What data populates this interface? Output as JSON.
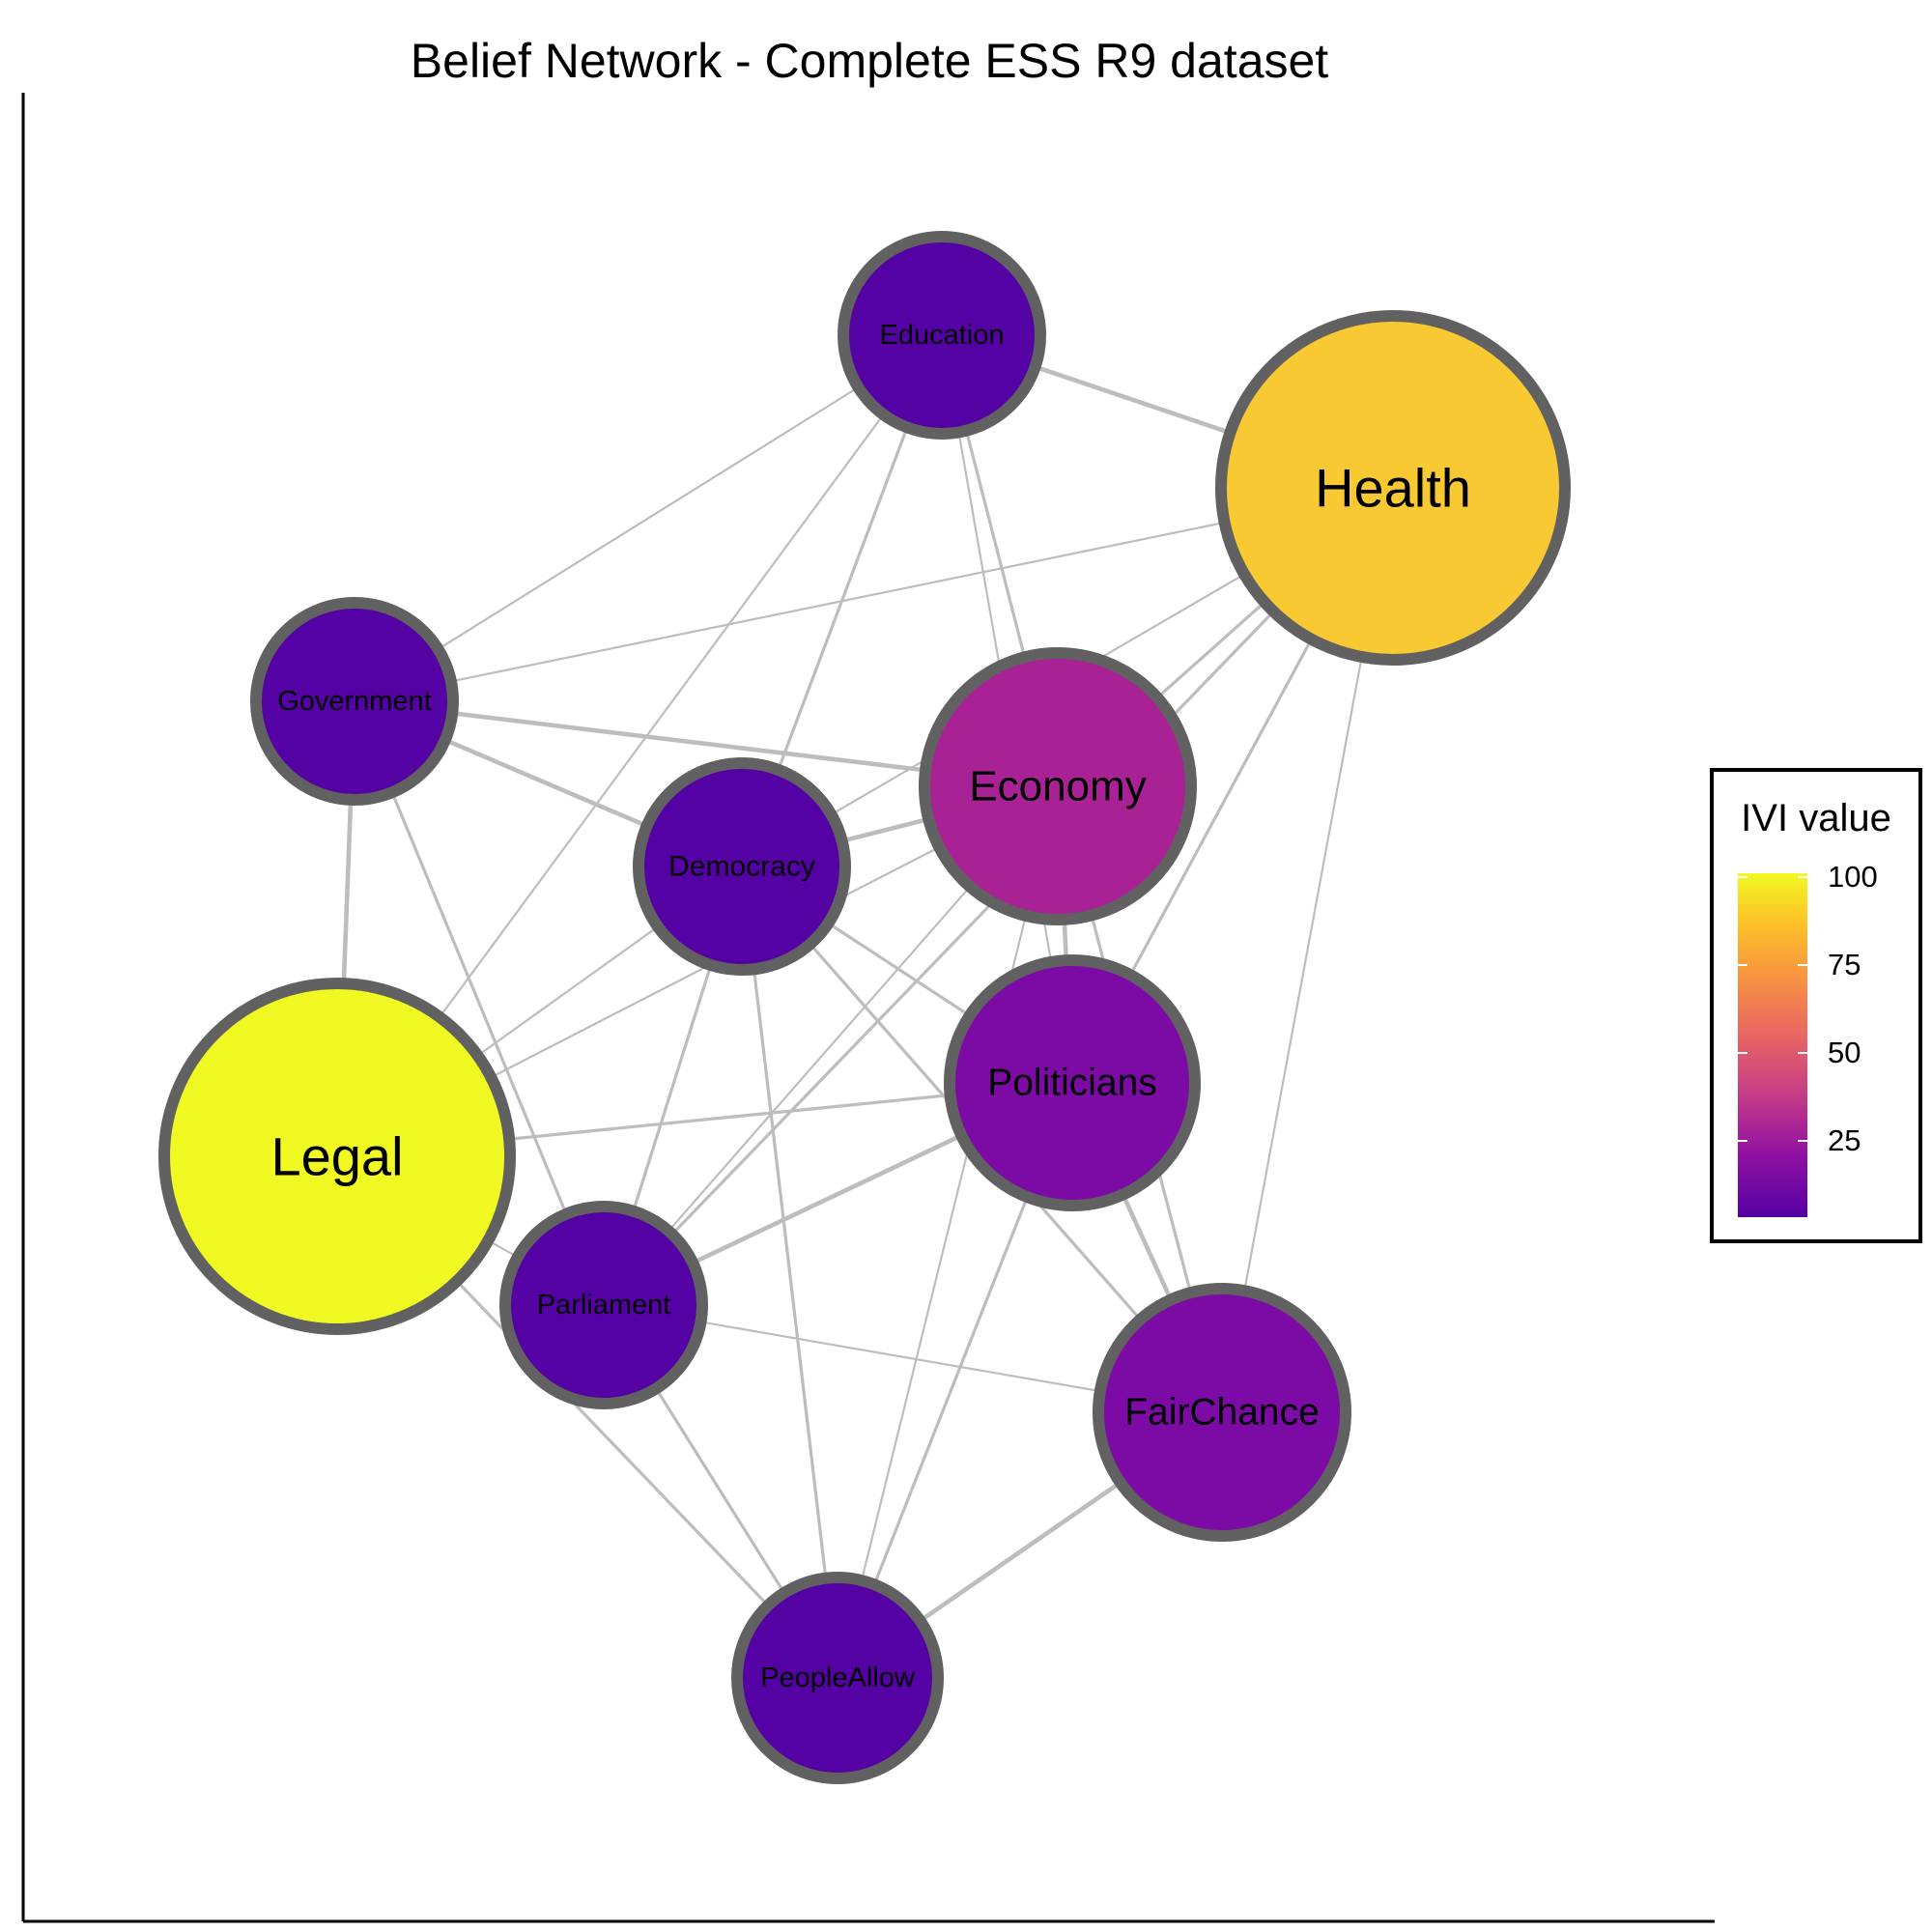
{
  "title": "Belief Network - Complete ESS R9 dataset",
  "legend": {
    "title": "IVI value",
    "ticks": [
      "100",
      "75",
      "50",
      "25"
    ],
    "colors": {
      "low": "#5402a3",
      "mid": "#cc4778",
      "high": "#f0f921"
    }
  },
  "nodes": [
    {
      "id": "education",
      "label": "Education",
      "color": "#5402a3"
    },
    {
      "id": "health",
      "label": "Health",
      "color": "#f8c932"
    },
    {
      "id": "government",
      "label": "Government",
      "color": "#5402a3"
    },
    {
      "id": "economy",
      "label": "Economy",
      "color": "#a82296"
    },
    {
      "id": "democracy",
      "label": "Democracy",
      "color": "#5402a3"
    },
    {
      "id": "politicians",
      "label": "Politicians",
      "color": "#7c0aa5"
    },
    {
      "id": "legal",
      "label": "Legal",
      "color": "#f0f921"
    },
    {
      "id": "parliament",
      "label": "Parliament",
      "color": "#5402a3"
    },
    {
      "id": "fairchance",
      "label": "FairChance",
      "color": "#7c0aa5"
    },
    {
      "id": "peopleallow",
      "label": "PeopleAllow",
      "color": "#5402a3"
    }
  ],
  "edges": [
    {
      "source": "education",
      "target": "health",
      "weight": "strong"
    },
    {
      "source": "education",
      "target": "government",
      "weight": "weak"
    },
    {
      "source": "education",
      "target": "democracy",
      "weight": "medium"
    },
    {
      "source": "education",
      "target": "economy",
      "weight": "medium"
    },
    {
      "source": "education",
      "target": "legal",
      "weight": "weak"
    },
    {
      "source": "education",
      "target": "politicians",
      "weight": "weak"
    },
    {
      "source": "health",
      "target": "government",
      "weight": "weak"
    },
    {
      "source": "health",
      "target": "economy",
      "weight": "medium"
    },
    {
      "source": "health",
      "target": "democracy",
      "weight": "weak"
    },
    {
      "source": "health",
      "target": "politicians",
      "weight": "medium"
    },
    {
      "source": "health",
      "target": "fairchance",
      "weight": "weak"
    },
    {
      "source": "health",
      "target": "parliament",
      "weight": "medium"
    },
    {
      "source": "government",
      "target": "economy",
      "weight": "strong"
    },
    {
      "source": "government",
      "target": "democracy",
      "weight": "strong"
    },
    {
      "source": "government",
      "target": "legal",
      "weight": "strong"
    },
    {
      "source": "government",
      "target": "parliament",
      "weight": "medium"
    },
    {
      "source": "democracy",
      "target": "economy",
      "weight": "strong"
    },
    {
      "source": "democracy",
      "target": "legal",
      "weight": "weak"
    },
    {
      "source": "democracy",
      "target": "politicians",
      "weight": "medium"
    },
    {
      "source": "democracy",
      "target": "parliament",
      "weight": "medium"
    },
    {
      "source": "democracy",
      "target": "peopleallow",
      "weight": "medium"
    },
    {
      "source": "democracy",
      "target": "fairchance",
      "weight": "medium"
    },
    {
      "source": "economy",
      "target": "politicians",
      "weight": "strong"
    },
    {
      "source": "economy",
      "target": "legal",
      "weight": "weak"
    },
    {
      "source": "economy",
      "target": "parliament",
      "weight": "weak"
    },
    {
      "source": "economy",
      "target": "peopleallow",
      "weight": "weak"
    },
    {
      "source": "economy",
      "target": "fairchance",
      "weight": "medium"
    },
    {
      "source": "politicians",
      "target": "legal",
      "weight": "medium"
    },
    {
      "source": "politicians",
      "target": "parliament",
      "weight": "strong"
    },
    {
      "source": "politicians",
      "target": "fairchance",
      "weight": "strong"
    },
    {
      "source": "politicians",
      "target": "peopleallow",
      "weight": "medium"
    },
    {
      "source": "legal",
      "target": "parliament",
      "weight": "weak"
    },
    {
      "source": "legal",
      "target": "peopleallow",
      "weight": "medium"
    },
    {
      "source": "parliament",
      "target": "fairchance",
      "weight": "weak"
    },
    {
      "source": "parliament",
      "target": "peopleallow",
      "weight": "medium"
    },
    {
      "source": "fairchance",
      "target": "peopleallow",
      "weight": "strong"
    }
  ]
}
